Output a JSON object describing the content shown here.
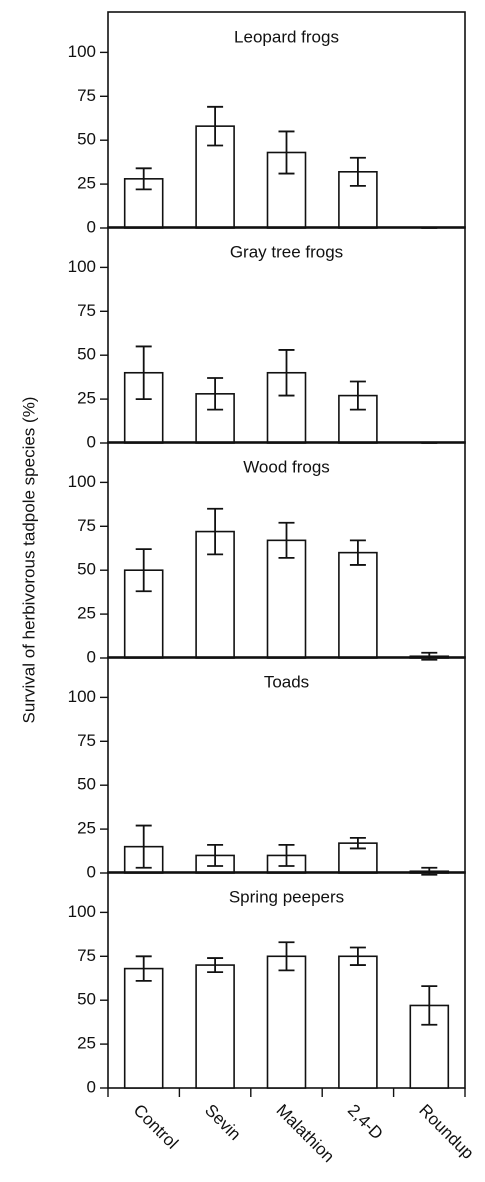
{
  "chart_data": {
    "type": "bar",
    "ylabel": "Survival of herbivorous tadpole species (%)",
    "categories": [
      "Control",
      "Sevin",
      "Malathion",
      "2,4-D",
      "Roundup"
    ],
    "ylim": [
      0,
      123
    ],
    "yticks": [
      0,
      25,
      50,
      75,
      100
    ],
    "panels": [
      {
        "title": "Leopard frogs",
        "values": [
          28,
          58,
          43,
          32,
          0
        ],
        "errors": [
          6,
          11,
          12,
          8,
          0
        ]
      },
      {
        "title": "Gray tree frogs",
        "values": [
          40,
          28,
          40,
          27,
          0
        ],
        "errors": [
          15,
          9,
          13,
          8,
          0
        ]
      },
      {
        "title": "Wood frogs",
        "values": [
          50,
          72,
          67,
          60,
          1
        ],
        "errors": [
          12,
          13,
          10,
          7,
          2
        ]
      },
      {
        "title": "Toads",
        "values": [
          15,
          10,
          10,
          17,
          1
        ],
        "errors": [
          12,
          6,
          6,
          3,
          2
        ]
      },
      {
        "title": "Spring peepers",
        "values": [
          68,
          70,
          75,
          75,
          47
        ],
        "errors": [
          7,
          4,
          8,
          5,
          11
        ]
      }
    ]
  }
}
